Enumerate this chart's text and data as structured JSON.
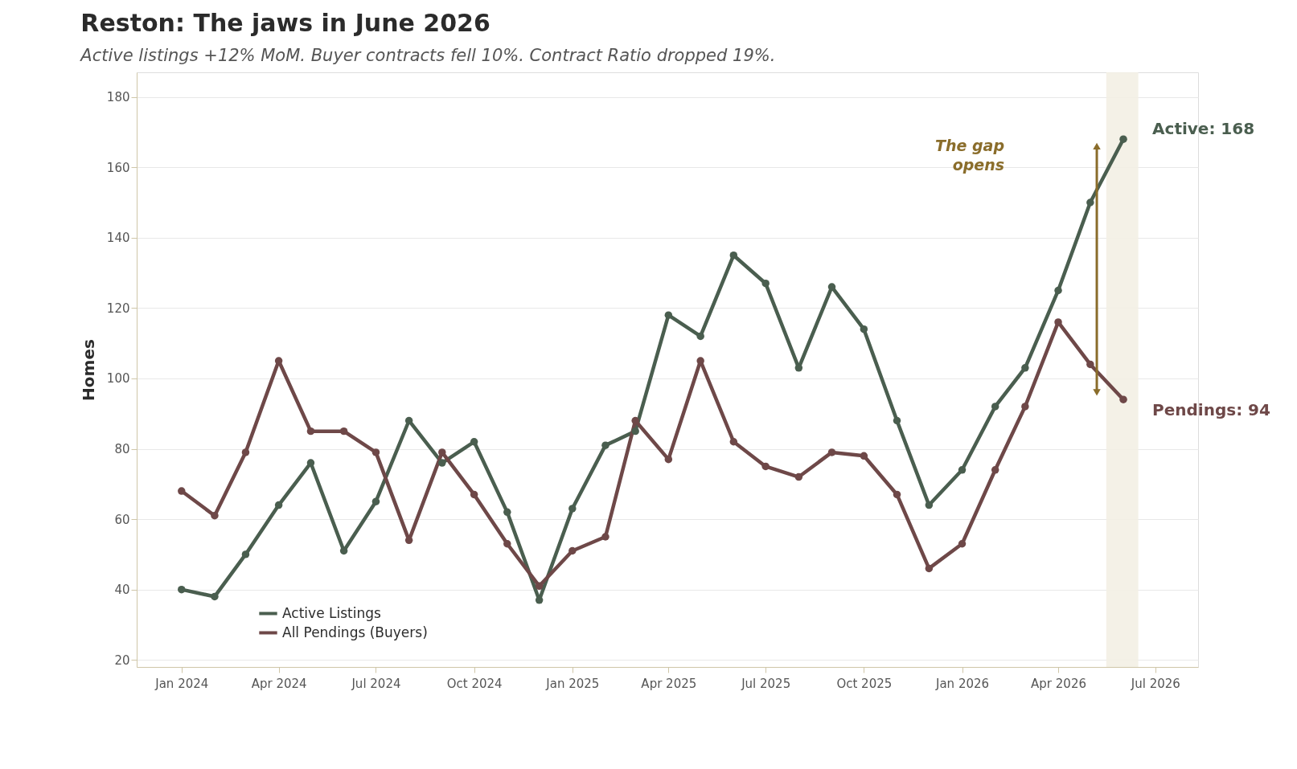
{
  "chart_data": {
    "type": "line",
    "title": "Reston: The jaws in June 2026",
    "subtitle": "Active listings +12% MoM. Buyer contracts fell 10%. Contract Ratio dropped 19%.",
    "ylabel": "Homes",
    "x": [
      "2024-01",
      "2024-02",
      "2024-03",
      "2024-04",
      "2024-05",
      "2024-06",
      "2024-07",
      "2024-08",
      "2024-09",
      "2024-10",
      "2024-11",
      "2024-12",
      "2025-01",
      "2025-02",
      "2025-03",
      "2025-04",
      "2025-05",
      "2025-06",
      "2025-07",
      "2025-08",
      "2025-09",
      "2025-10",
      "2025-11",
      "2025-12",
      "2026-01",
      "2026-02",
      "2026-03",
      "2026-04",
      "2026-05",
      "2026-06"
    ],
    "series": [
      {
        "name": "Active Listings",
        "color": "#4a5e4f",
        "values": [
          40,
          38,
          50,
          64,
          76,
          51,
          65,
          88,
          76,
          82,
          62,
          37,
          63,
          81,
          85,
          118,
          112,
          135,
          127,
          103,
          126,
          114,
          88,
          64,
          74,
          92,
          103,
          125,
          150,
          168
        ]
      },
      {
        "name": "All Pendings (Buyers)",
        "color": "#6e4848",
        "values": [
          68,
          61,
          79,
          105,
          85,
          85,
          79,
          54,
          79,
          67,
          53,
          41,
          51,
          55,
          88,
          77,
          105,
          82,
          75,
          72,
          79,
          78,
          67,
          46,
          53,
          74,
          92,
          116,
          104,
          94
        ]
      }
    ],
    "xlim": [
      "2023-11-20",
      "2026-08-10"
    ],
    "xticks": [
      {
        "value": "2024-01",
        "label": "Jan 2024"
      },
      {
        "value": "2024-04",
        "label": "Apr 2024"
      },
      {
        "value": "2024-07",
        "label": "Jul 2024"
      },
      {
        "value": "2024-10",
        "label": "Oct 2024"
      },
      {
        "value": "2025-01",
        "label": "Jan 2025"
      },
      {
        "value": "2025-04",
        "label": "Apr 2025"
      },
      {
        "value": "2025-07",
        "label": "Jul 2025"
      },
      {
        "value": "2025-10",
        "label": "Oct 2025"
      },
      {
        "value": "2026-01",
        "label": "Jan 2026"
      },
      {
        "value": "2026-04",
        "label": "Apr 2026"
      },
      {
        "value": "2026-07",
        "label": "Jul 2026"
      }
    ],
    "ylim": [
      18,
      187
    ],
    "yticks": [
      20,
      40,
      60,
      80,
      100,
      120,
      140,
      160,
      180
    ],
    "grid": "y",
    "legend": "bottom left",
    "marker": "circle",
    "line_style": "solid",
    "bands": [
      {
        "axis": "x",
        "from": "2026-05-16",
        "to": "2026-06-15",
        "color": "#f3efe4"
      }
    ],
    "annotations": [
      "The gap\nopens",
      {
        "text": "Active: 168",
        "x": "2026-06",
        "y": 168
      },
      {
        "text": "Pendings: 94",
        "x": "2026-06",
        "y": 94
      }
    ]
  }
}
